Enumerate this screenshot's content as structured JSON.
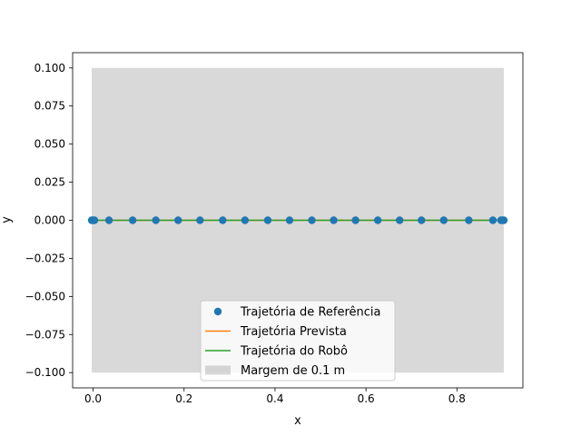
{
  "chart_data": {
    "type": "scatter",
    "title": "",
    "xlabel": "x",
    "ylabel": "y",
    "xlim": [
      -0.045,
      0.945
    ],
    "ylim": [
      -0.11,
      0.11
    ],
    "x_ticks": [
      {
        "value": 0.0,
        "label": "0.0"
      },
      {
        "value": 0.2,
        "label": "0.2"
      },
      {
        "value": 0.4,
        "label": "0.4"
      },
      {
        "value": 0.6,
        "label": "0.6"
      },
      {
        "value": 0.8,
        "label": "0.8"
      }
    ],
    "y_ticks": [
      {
        "value": 0.1,
        "label": "0.100"
      },
      {
        "value": 0.075,
        "label": "0.075"
      },
      {
        "value": 0.05,
        "label": "0.050"
      },
      {
        "value": 0.025,
        "label": "0.025"
      },
      {
        "value": 0.0,
        "label": "0.000"
      },
      {
        "value": -0.025,
        "label": "−0.025"
      },
      {
        "value": -0.05,
        "label": "−0.050"
      },
      {
        "value": -0.075,
        "label": "−0.075"
      },
      {
        "value": -0.1,
        "label": "−0.100"
      }
    ],
    "grid": false,
    "legend_position": "lower center",
    "series": [
      {
        "name": "Trajetória de Referência",
        "kind": "scatter",
        "color": "#1f77b4",
        "x": [
          -0.003,
          0.0,
          0.003,
          0.035,
          0.087,
          0.138,
          0.187,
          0.235,
          0.285,
          0.334,
          0.384,
          0.432,
          0.481,
          0.529,
          0.577,
          0.626,
          0.674,
          0.722,
          0.771,
          0.826,
          0.879,
          0.897,
          0.9,
          0.903
        ],
        "y": [
          0,
          0,
          0,
          0,
          0,
          0,
          0,
          0,
          0,
          0,
          0,
          0,
          0,
          0,
          0,
          0,
          0,
          0,
          0,
          0,
          0,
          0,
          0,
          0
        ]
      },
      {
        "name": "Trajetória Prevista",
        "kind": "line",
        "color": "#ff7f0e",
        "x": [
          0.0,
          0.9
        ],
        "y": [
          0,
          0
        ]
      },
      {
        "name": "Trajetória do Robô",
        "kind": "line",
        "color": "#2ca02c",
        "x": [
          0.0,
          0.9
        ],
        "y": [
          0,
          0
        ]
      },
      {
        "name": "Margem de 0.1 m",
        "kind": "band",
        "color": "#808080",
        "x": [
          -0.003,
          0.0,
          0.003,
          0.897,
          0.9,
          0.903
        ],
        "lower": [
          -0.1,
          -0.1,
          -0.1,
          -0.1,
          -0.1,
          -0.1
        ],
        "upper": [
          0.1,
          0.1,
          0.1,
          0.1,
          0.1,
          0.1
        ]
      }
    ]
  }
}
